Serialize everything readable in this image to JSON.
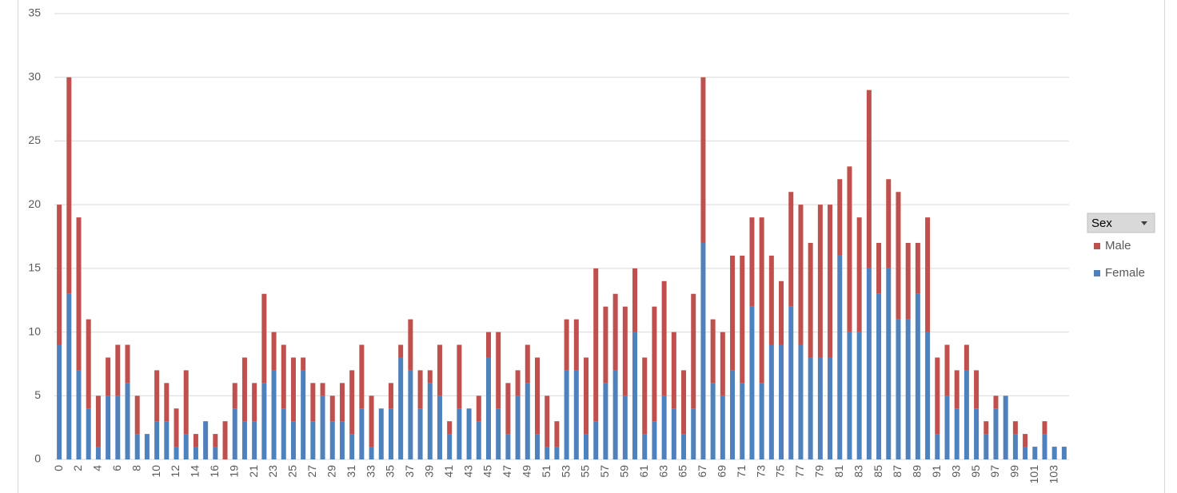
{
  "chart_data": {
    "type": "stacked-bar",
    "legend_title": "Sex",
    "legend": "right",
    "grid": true,
    "ylim": [
      0,
      35
    ],
    "yticks": [
      0,
      5,
      10,
      15,
      20,
      25,
      30,
      35
    ],
    "categories": [
      "0",
      null,
      "2",
      null,
      "4",
      null,
      "6",
      null,
      "8",
      null,
      "10",
      null,
      "12",
      null,
      "14",
      null,
      "16",
      null,
      "19",
      null,
      "21",
      null,
      "23",
      null,
      "25",
      null,
      "27",
      null,
      "29",
      null,
      "31",
      null,
      "33",
      null,
      "35",
      null,
      "37",
      null,
      "39",
      null,
      "41",
      null,
      "43",
      null,
      "45",
      null,
      "47",
      null,
      "49",
      null,
      "51",
      null,
      "53",
      null,
      "55",
      null,
      "57",
      null,
      "59",
      null,
      "61",
      null,
      "63",
      null,
      "65",
      null,
      "67",
      null,
      "69",
      null,
      "71",
      null,
      "73",
      null,
      "75",
      null,
      "77",
      null,
      "79",
      null,
      "81",
      null,
      "83",
      null,
      "85",
      null,
      "87",
      null,
      "89",
      null,
      "91",
      null,
      "93",
      null,
      "95",
      null,
      "97",
      null,
      "99",
      null,
      "101",
      null,
      "103",
      null
    ],
    "series": [
      {
        "name": "Female",
        "color": "#4f81bd",
        "values": [
          9,
          13,
          7,
          4,
          1,
          5,
          5,
          6,
          2,
          2,
          3,
          3,
          1,
          2,
          1,
          3,
          1,
          0,
          4,
          3,
          3,
          6,
          7,
          4,
          3,
          7,
          3,
          5,
          3,
          3,
          2,
          4,
          1,
          4,
          4,
          8,
          7,
          4,
          6,
          5,
          2,
          4,
          4,
          3,
          8,
          4,
          2,
          5,
          6,
          2,
          1,
          1,
          7,
          7,
          2,
          3,
          6,
          7,
          5,
          10,
          2,
          3,
          5,
          4,
          2,
          4,
          17,
          6,
          5,
          7,
          6,
          12,
          6,
          9,
          9,
          12,
          9,
          8,
          8,
          8,
          16,
          10,
          10,
          15,
          13,
          15,
          11,
          11,
          13,
          10,
          2,
          5,
          4,
          7,
          4,
          2,
          4,
          5,
          2,
          1,
          1,
          2,
          1,
          1
        ]
      },
      {
        "name": "Male",
        "color": "#c0504d",
        "values": [
          11,
          17,
          12,
          7,
          4,
          3,
          4,
          3,
          3,
          0,
          4,
          3,
          3,
          5,
          1,
          0,
          1,
          3,
          2,
          5,
          3,
          7,
          3,
          5,
          5,
          1,
          3,
          1,
          2,
          3,
          5,
          5,
          4,
          0,
          2,
          1,
          4,
          3,
          1,
          4,
          1,
          5,
          0,
          2,
          2,
          6,
          4,
          2,
          3,
          6,
          4,
          2,
          4,
          4,
          6,
          12,
          6,
          6,
          7,
          5,
          6,
          9,
          9,
          6,
          5,
          9,
          13,
          5,
          5,
          9,
          10,
          7,
          13,
          7,
          5,
          9,
          11,
          9,
          12,
          12,
          6,
          13,
          9,
          14,
          4,
          7,
          10,
          6,
          4,
          9,
          6,
          4,
          3,
          2,
          3,
          1,
          1,
          0,
          1,
          1,
          0,
          1,
          0,
          0
        ]
      }
    ]
  }
}
